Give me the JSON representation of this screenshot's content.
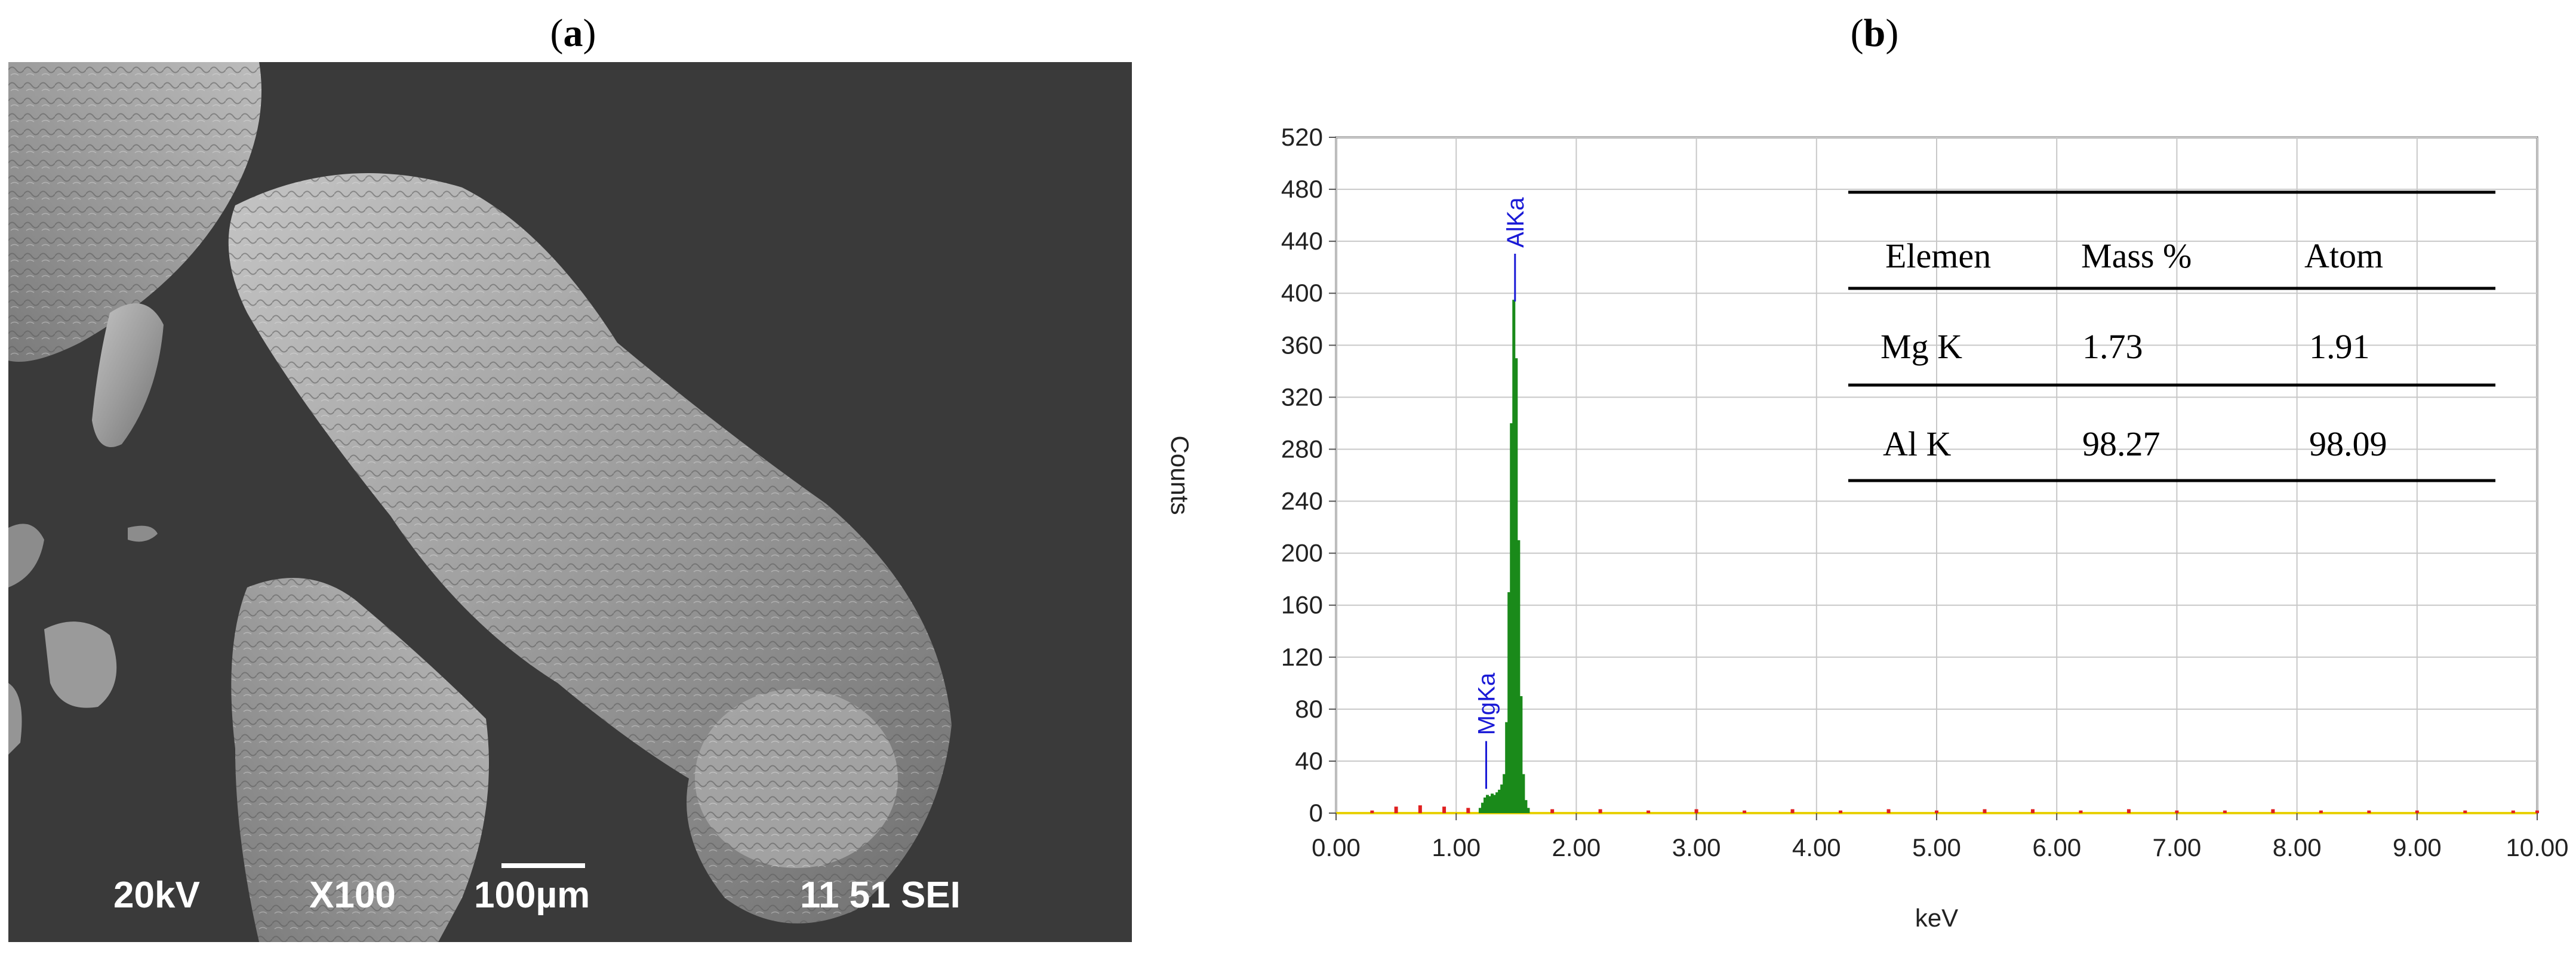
{
  "panels": {
    "a_label": "a",
    "b_label": "b"
  },
  "sem": {
    "voltage": "20kV",
    "magnification": "X100",
    "scale_label": "100µm",
    "info": "11 51 SEI",
    "background_color": "#3a3a3a"
  },
  "chart_data": {
    "type": "bar",
    "xlabel": "keV",
    "ylabel": "Counts",
    "xlim": [
      0,
      10
    ],
    "ylim": [
      0,
      520
    ],
    "grid": true,
    "x_ticks": [
      "0.00",
      "1.00",
      "2.00",
      "3.00",
      "4.00",
      "5.00",
      "6.00",
      "7.00",
      "8.00",
      "9.00",
      "10.00"
    ],
    "y_ticks": [
      "0",
      "40",
      "80",
      "120",
      "160",
      "200",
      "240",
      "280",
      "320",
      "360",
      "400",
      "440",
      "480",
      "520"
    ],
    "series": [
      {
        "name": "",
        "color": "#1a8a1a",
        "x": [
          1.2,
          1.22,
          1.24,
          1.26,
          1.28,
          1.3,
          1.32,
          1.34,
          1.36,
          1.38,
          1.4,
          1.42,
          1.44,
          1.46,
          1.48,
          1.5,
          1.52,
          1.54,
          1.56,
          1.58,
          1.6
        ],
        "y": [
          4,
          8,
          12,
          14,
          13,
          15,
          14,
          16,
          18,
          22,
          30,
          70,
          170,
          300,
          395,
          350,
          210,
          90,
          30,
          10,
          4
        ]
      },
      {
        "name": "",
        "color": "#e02020",
        "x": [
          0.3,
          0.5,
          0.7,
          0.9,
          1.1,
          1.8,
          2.2,
          2.6,
          3.0,
          3.4,
          3.8,
          4.2,
          4.6,
          5.0,
          5.4,
          5.8,
          6.2,
          6.6,
          7.0,
          7.4,
          7.8,
          8.2,
          8.6,
          9.0,
          9.4,
          9.8,
          10.0
        ],
        "y": [
          2,
          5,
          6,
          5,
          4,
          3,
          3,
          2,
          3,
          2,
          3,
          2,
          3,
          2,
          3,
          3,
          2,
          3,
          2,
          2,
          3,
          2,
          2,
          2,
          2,
          2,
          2
        ]
      }
    ],
    "peak_labels": [
      {
        "text": "MgKa",
        "x": 1.25,
        "y": 60
      },
      {
        "text": "AlKa",
        "x": 1.49,
        "y": 435
      }
    ],
    "table": {
      "headers": [
        "Elemen",
        "Mass %",
        "Atom"
      ],
      "rows": [
        [
          "Mg K",
          "1.73",
          "1.91"
        ],
        [
          "Al K",
          "98.27",
          "98.09"
        ]
      ]
    }
  }
}
